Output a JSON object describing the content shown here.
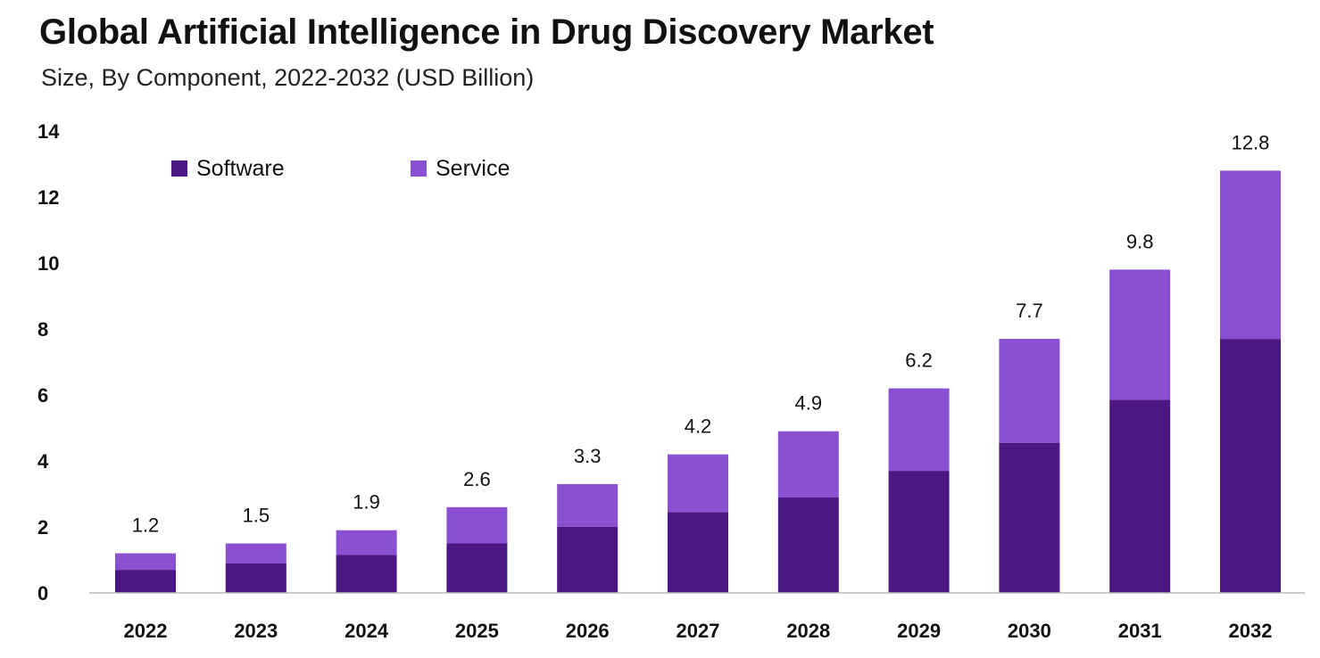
{
  "title": "Global Artificial Intelligence in Drug Discovery Market",
  "subtitle": "Size, By Component, 2022-2032 (USD Billion)",
  "colors": {
    "software": "#4b1782",
    "service": "#8b4fd1",
    "axis": "#bbbbbb"
  },
  "chart_data": {
    "type": "bar",
    "stacked": true,
    "categories": [
      "2022",
      "2023",
      "2024",
      "2025",
      "2026",
      "2027",
      "2028",
      "2029",
      "2030",
      "2031",
      "2032"
    ],
    "series": [
      {
        "name": "Software",
        "values": [
          0.7,
          0.9,
          1.15,
          1.5,
          2.0,
          2.45,
          2.9,
          3.7,
          4.55,
          5.85,
          7.7
        ]
      },
      {
        "name": "Service",
        "values": [
          0.5,
          0.6,
          0.75,
          1.1,
          1.3,
          1.75,
          2.0,
          2.5,
          3.15,
          3.95,
          5.1
        ]
      }
    ],
    "totals": [
      "1.2",
      "1.5",
      "1.9",
      "2.6",
      "3.3",
      "4.2",
      "4.9",
      "6.2",
      "7.7",
      "9.8",
      "12.8"
    ],
    "yticks": [
      "0",
      "2",
      "4",
      "6",
      "8",
      "10",
      "12",
      "14"
    ],
    "ylim": [
      0,
      14
    ],
    "xlabel": "",
    "ylabel": "",
    "legend_position": "top-left"
  }
}
